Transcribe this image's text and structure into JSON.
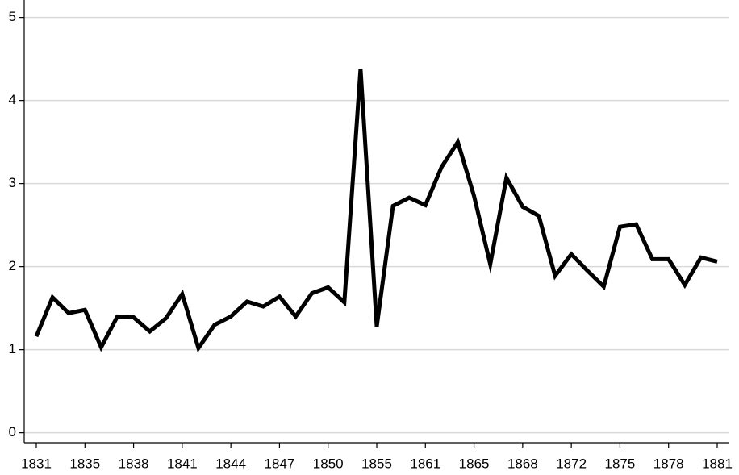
{
  "chart_data": {
    "type": "line",
    "categories": [
      1831,
      null,
      null,
      1835,
      null,
      null,
      1838,
      null,
      null,
      1841,
      null,
      null,
      1844,
      null,
      null,
      1847,
      null,
      null,
      1850,
      null,
      null,
      1855,
      null,
      null,
      1861,
      null,
      null,
      1865,
      null,
      null,
      1868,
      null,
      null,
      1872,
      null,
      null,
      1875,
      null,
      null,
      1878,
      null,
      null,
      1881
    ],
    "values": [
      1.16,
      1.63,
      1.44,
      1.48,
      1.03,
      1.4,
      1.39,
      1.22,
      1.38,
      1.67,
      1.02,
      1.3,
      1.4,
      1.58,
      1.52,
      1.64,
      1.4,
      1.68,
      1.75,
      1.57,
      4.38,
      1.28,
      2.73,
      2.83,
      2.74,
      3.2,
      3.5,
      2.85,
      2.03,
      3.07,
      2.72,
      2.61,
      1.89,
      2.15,
      1.95,
      1.76,
      2.48,
      2.51,
      2.09,
      2.09,
      1.78,
      2.11,
      2.06
    ],
    "color": "#000000",
    "ylim": [
      -0.12,
      5.21
    ],
    "yticks": [
      0,
      1,
      2,
      3,
      4,
      5
    ],
    "grid": true
  }
}
